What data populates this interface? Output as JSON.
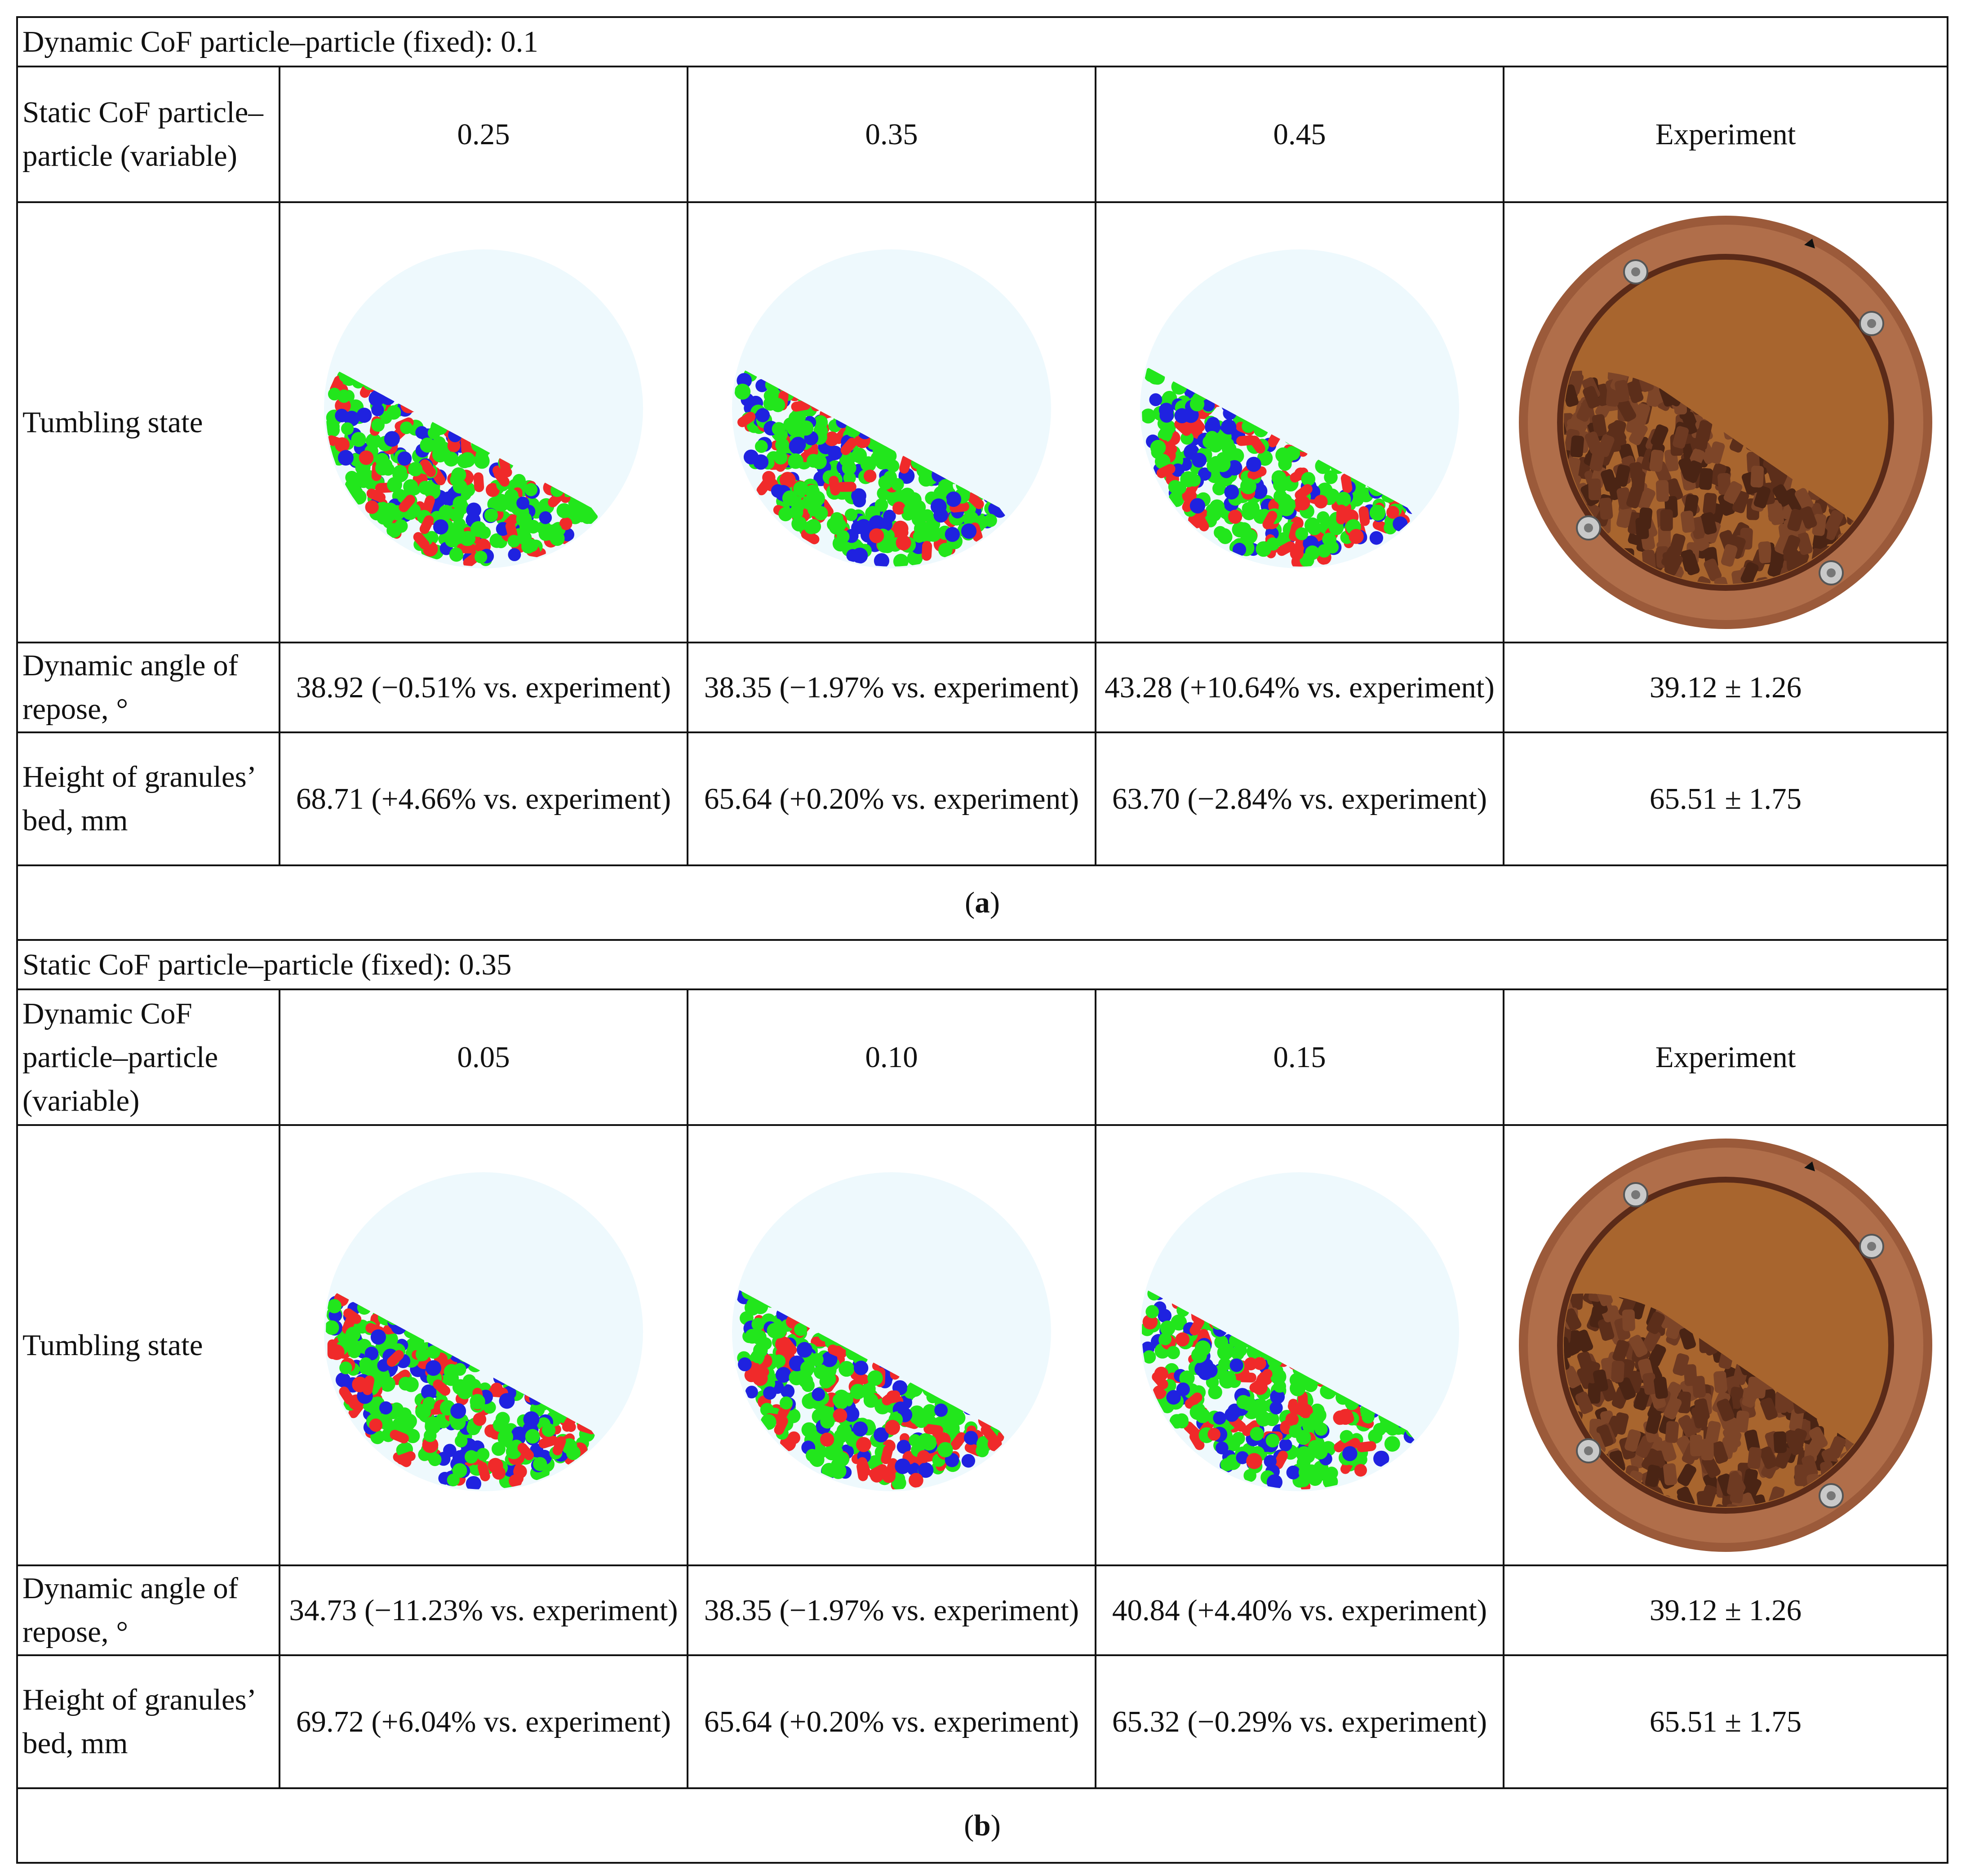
{
  "panels": [
    {
      "fixed_label": "Dynamic CoF particle–particle (fixed): 0.1",
      "variable_label": "Static CoF particle–particle (variable)",
      "columns": [
        "0.25",
        "0.35",
        "0.45",
        "Experiment"
      ],
      "tumbling_label": "Tumbling state",
      "angle_label": "Dynamic angle of repose, °",
      "angle_values": [
        "38.92 (−0.51% vs. experiment)",
        "38.35 (−1.97% vs. experiment)",
        "43.28 (+10.64% vs. experiment)",
        "39.12 ± 1.26"
      ],
      "height_label": "Height of granules’ bed, mm",
      "height_values": [
        "68.71 (+4.66% vs. experiment)",
        "65.64 (+0.20% vs. experiment)",
        "63.70 (−2.84% vs. experiment)",
        "65.51 ± 1.75"
      ],
      "caption_open": "(",
      "caption_letter": "a",
      "caption_close": ")"
    },
    {
      "fixed_label": "Static CoF particle–particle (fixed): 0.35",
      "variable_label": "Dynamic CoF particle–particle (variable)",
      "columns": [
        "0.05",
        "0.10",
        "0.15",
        "Experiment"
      ],
      "tumbling_label": "Tumbling state",
      "angle_label": "Dynamic angle of repose, °",
      "angle_values": [
        "34.73 (−11.23% vs. experiment)",
        "38.35 (−1.97% vs. experiment)",
        "40.84 (+4.40% vs. experiment)",
        "39.12 ± 1.26"
      ],
      "height_label": "Height of granules’ bed, mm",
      "height_values": [
        "69.72 (+6.04% vs. experiment)",
        "65.64 (+0.20% vs. experiment)",
        "65.32 (−0.29% vs. experiment)",
        "65.51 ± 1.75"
      ],
      "caption_open": "(",
      "caption_letter": "b",
      "caption_close": ")"
    }
  ],
  "colors": {
    "drum_fill": "#eef9fd",
    "particle_green": "#22e61c",
    "particle_blue": "#1f22e0",
    "particle_red": "#f02a2a",
    "ring_copper": "#9b5a3a",
    "window_amber": "#a8652e",
    "granule_brown": "#6e3a22",
    "bolt_silver": "#c9c9c9"
  },
  "images": {
    "simulation_icon": "simulation-particle-bed-image",
    "experiment_icon": "experiment-photo-image"
  }
}
